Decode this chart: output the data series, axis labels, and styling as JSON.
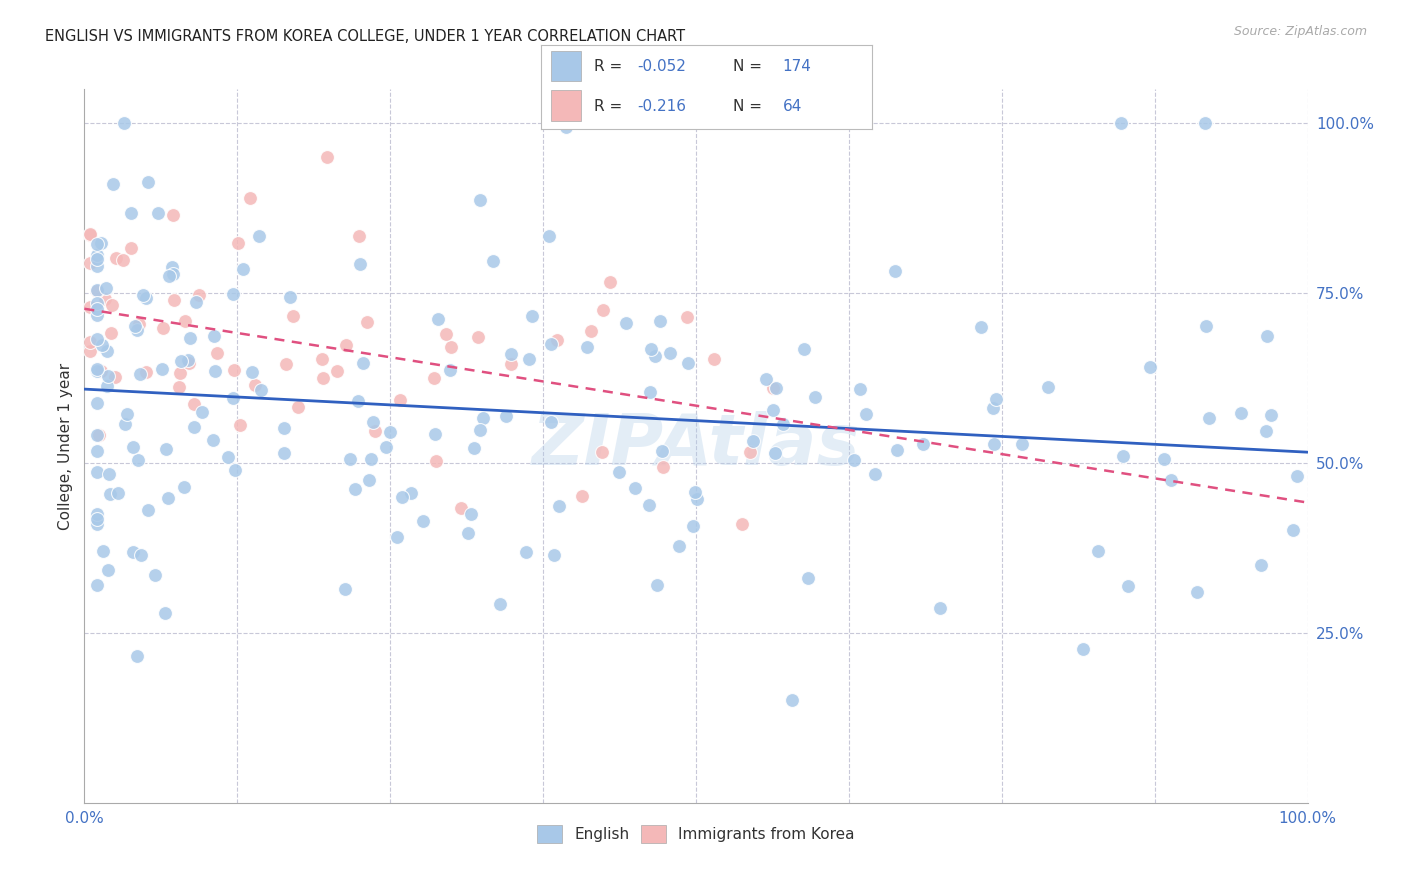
{
  "title": "ENGLISH VS IMMIGRANTS FROM KOREA COLLEGE, UNDER 1 YEAR CORRELATION CHART",
  "source": "Source: ZipAtlas.com",
  "ylabel": "College, Under 1 year",
  "blue_color": "#a8c8e8",
  "pink_color": "#f4b8b8",
  "blue_line_color": "#3060c0",
  "pink_line_color": "#e05080",
  "legend_label_english": "English",
  "legend_label_korea": "Immigrants from Korea",
  "background_color": "#ffffff",
  "grid_color": "#c8c8d8",
  "title_color": "#222222",
  "axis_tick_color": "#4472c4",
  "watermark": "ZIPAtlas",
  "watermark_color": "#b0cce8",
  "blue_R": -0.052,
  "blue_N": 174,
  "pink_R": -0.216,
  "pink_N": 64,
  "legend_R_color": "#4472c4",
  "legend_N_color": "#4472c4"
}
